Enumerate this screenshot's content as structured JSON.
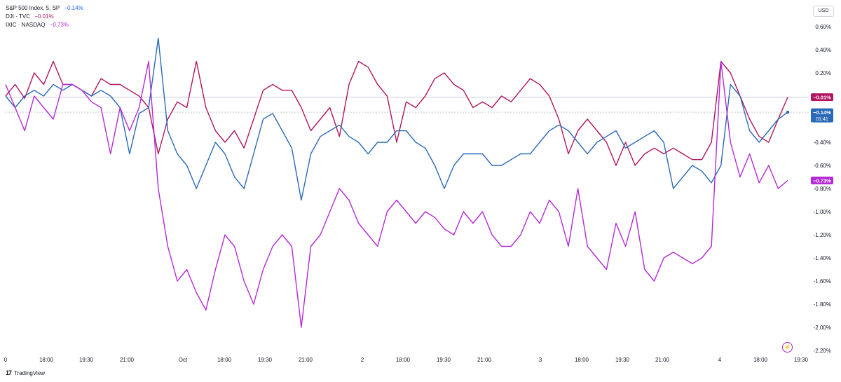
{
  "legend": [
    {
      "name": "S&P 500 Index, 5, SP",
      "value": "−0.14%",
      "color": "#2962ff"
    },
    {
      "name": "DJI · TVC",
      "value": "−0.01%",
      "color": "#b0155f"
    },
    {
      "name": "IXIC · NASDAQ",
      "value": "−0.73%",
      "color": "#b42ad6"
    }
  ],
  "currency": "USD",
  "footer": {
    "logo": "17",
    "brand": "TradingView"
  },
  "chart_data": {
    "type": "line",
    "x_ticks": [
      "0",
      "18:00",
      "19:30",
      "21:00",
      "Oct",
      "18:00",
      "19:30",
      "21:00",
      "2",
      "18:00",
      "19:30",
      "21:00",
      "3",
      "18:00",
      "19:30",
      "21:00",
      "4",
      "18:00",
      "19:30"
    ],
    "y_ticks": [
      "0.60%",
      "0.40%",
      "0.20%",
      "-0.20%",
      "-0.40%",
      "-0.60%",
      "-0.80%",
      "-1.00%",
      "-1.20%",
      "-1.40%",
      "-1.60%",
      "-1.80%",
      "-2.00%",
      "-2.20%"
    ],
    "ylim": [
      -2.2,
      0.6
    ],
    "grid": false,
    "legend_position": "top-left",
    "series": [
      {
        "name": "DJI",
        "color": "#b0155f",
        "tag": "−0.01%",
        "last": -0.01,
        "y": [
          0.0,
          0.1,
          -0.02,
          0.2,
          0.1,
          0.3,
          0.1,
          0.1,
          0.05,
          0.0,
          0.15,
          0.1,
          0.1,
          0.05,
          0.0,
          -0.1,
          -0.5,
          -0.2,
          -0.05,
          -0.1,
          0.3,
          -0.1,
          -0.3,
          -0.4,
          -0.3,
          -0.45,
          -0.2,
          0.05,
          0.1,
          0.05,
          0.05,
          -0.1,
          -0.3,
          -0.2,
          -0.1,
          -0.35,
          0.1,
          0.3,
          0.25,
          0.1,
          0.0,
          -0.4,
          -0.05,
          -0.1,
          0.0,
          0.15,
          0.2,
          0.1,
          0.05,
          -0.1,
          -0.05,
          -0.1,
          0.0,
          -0.05,
          0.05,
          0.15,
          0.1,
          0.0,
          -0.2,
          -0.5,
          -0.3,
          -0.2,
          -0.3,
          -0.4,
          -0.6,
          -0.4,
          -0.6,
          -0.5,
          -0.45,
          -0.5,
          -0.45,
          -0.5,
          -0.55,
          -0.55,
          -0.4,
          0.3,
          0.2,
          0.0,
          -0.2,
          -0.35,
          -0.4,
          -0.2,
          -0.01
        ]
      },
      {
        "name": "S&P 500",
        "color": "#2a6ab8",
        "tag": "−0.14%",
        "sub_tag": "01:41",
        "last": -0.14,
        "y": [
          0.0,
          -0.1,
          0.0,
          0.05,
          0.0,
          0.1,
          0.05,
          0.1,
          0.05,
          0.0,
          0.05,
          0.0,
          -0.1,
          -0.5,
          -0.15,
          -0.1,
          0.5,
          -0.3,
          -0.5,
          -0.6,
          -0.8,
          -0.6,
          -0.4,
          -0.5,
          -0.7,
          -0.8,
          -0.5,
          -0.2,
          -0.15,
          -0.3,
          -0.45,
          -0.9,
          -0.5,
          -0.35,
          -0.3,
          -0.25,
          -0.35,
          -0.4,
          -0.5,
          -0.4,
          -0.4,
          -0.3,
          -0.3,
          -0.4,
          -0.45,
          -0.6,
          -0.8,
          -0.6,
          -0.5,
          -0.5,
          -0.5,
          -0.6,
          -0.6,
          -0.55,
          -0.5,
          -0.5,
          -0.4,
          -0.3,
          -0.25,
          -0.3,
          -0.4,
          -0.5,
          -0.4,
          -0.35,
          -0.3,
          -0.45,
          -0.4,
          -0.35,
          -0.3,
          -0.4,
          -0.8,
          -0.7,
          -0.6,
          -0.65,
          -0.75,
          -0.6,
          0.1,
          0.0,
          -0.3,
          -0.4,
          -0.3,
          -0.2,
          -0.14
        ]
      },
      {
        "name": "IXIC",
        "color": "#b42ad6",
        "tag": "−0.73%",
        "last": -0.73,
        "y": [
          0.1,
          -0.1,
          -0.3,
          0.0,
          -0.1,
          -0.2,
          0.1,
          0.1,
          0.05,
          -0.05,
          -0.1,
          -0.5,
          -0.1,
          -0.3,
          -0.1,
          0.3,
          -0.8,
          -1.3,
          -1.6,
          -1.5,
          -1.7,
          -1.85,
          -1.5,
          -1.2,
          -1.3,
          -1.6,
          -1.8,
          -1.5,
          -1.3,
          -1.2,
          -1.3,
          -2.0,
          -1.3,
          -1.2,
          -1.0,
          -0.8,
          -0.9,
          -1.1,
          -1.2,
          -1.3,
          -1.0,
          -0.9,
          -1.0,
          -1.1,
          -1.0,
          -1.05,
          -1.15,
          -1.2,
          -1.0,
          -1.1,
          -1.0,
          -1.2,
          -1.3,
          -1.3,
          -1.2,
          -1.0,
          -1.1,
          -0.9,
          -1.0,
          -1.3,
          -0.8,
          -1.3,
          -1.4,
          -1.5,
          -1.1,
          -1.3,
          -1.0,
          -1.5,
          -1.6,
          -1.4,
          -1.35,
          -1.4,
          -1.45,
          -1.4,
          -1.3,
          0.3,
          -0.4,
          -0.7,
          -0.5,
          -0.75,
          -0.6,
          -0.8,
          -0.73
        ]
      }
    ]
  }
}
